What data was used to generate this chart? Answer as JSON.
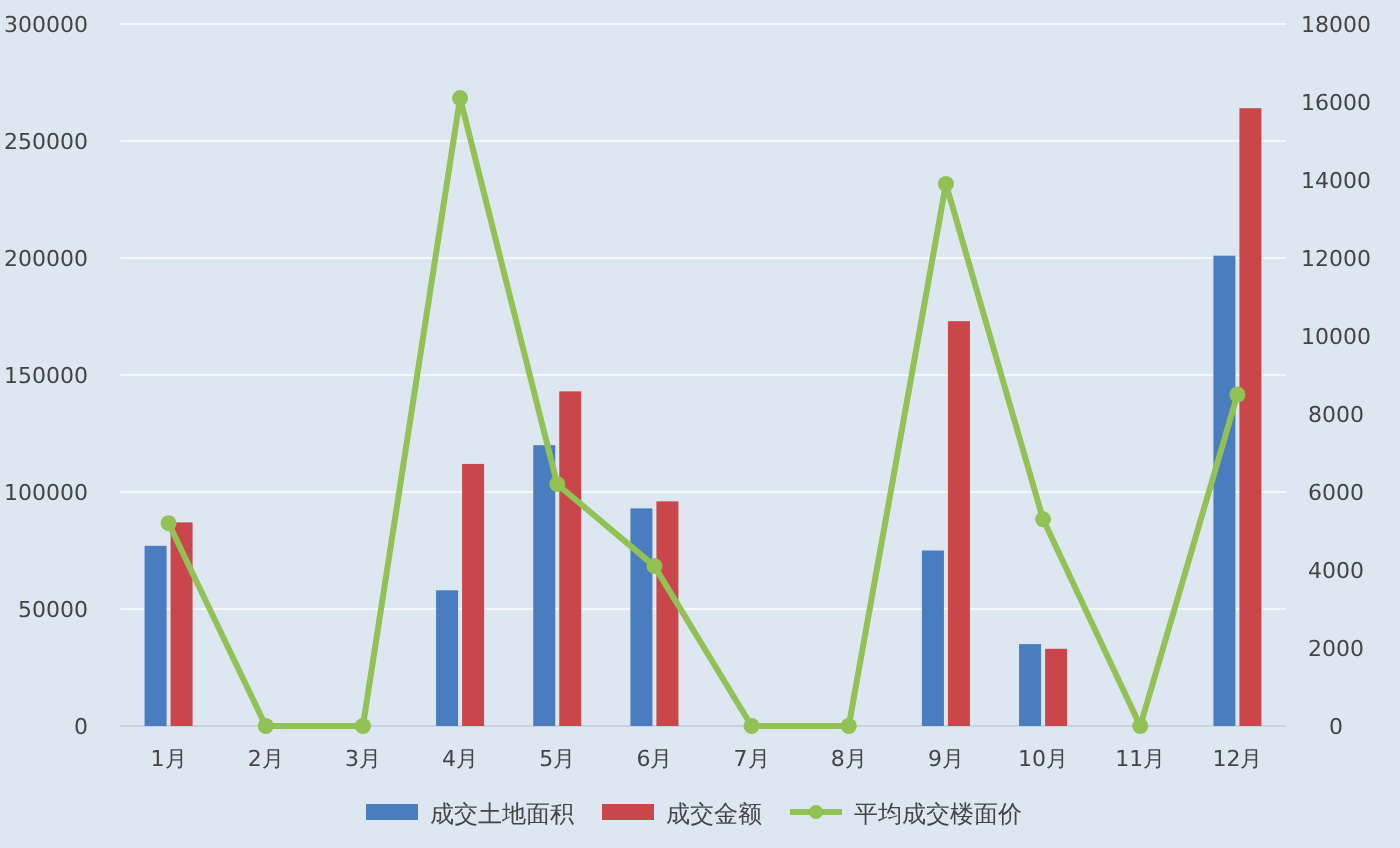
{
  "chart_data": {
    "type": "bar",
    "categories": [
      "1月",
      "2月",
      "3月",
      "4月",
      "5月",
      "6月",
      "7月",
      "8月",
      "9月",
      "10月",
      "11月",
      "12月"
    ],
    "series": [
      {
        "name": "成交土地面积",
        "color": "#4a7dbf",
        "values": [
          77000,
          null,
          null,
          58000,
          120000,
          93000,
          null,
          null,
          75000,
          35000,
          null,
          201000
        ]
      },
      {
        "name": "成交金额",
        "color": "#c9464a",
        "values": [
          87000,
          null,
          null,
          112000,
          143000,
          96000,
          null,
          null,
          173000,
          33000,
          null,
          264000
        ]
      },
      {
        "name": "平均成交楼面价",
        "type": "line",
        "axis": "y2",
        "color": "#92c156",
        "values": [
          5200,
          0,
          0,
          16100,
          6200,
          4100,
          0,
          0,
          13900,
          5300,
          0,
          8500
        ]
      }
    ],
    "ylim": [
      0,
      300000
    ],
    "yticks": [
      0,
      50000,
      100000,
      150000,
      200000,
      250000,
      300000
    ],
    "y2lim": [
      0,
      18000
    ],
    "y2ticks": [
      0,
      2000,
      4000,
      6000,
      8000,
      10000,
      12000,
      14000,
      16000,
      18000
    ],
    "grid": "y",
    "legend": "bottom",
    "marker": "circle"
  }
}
